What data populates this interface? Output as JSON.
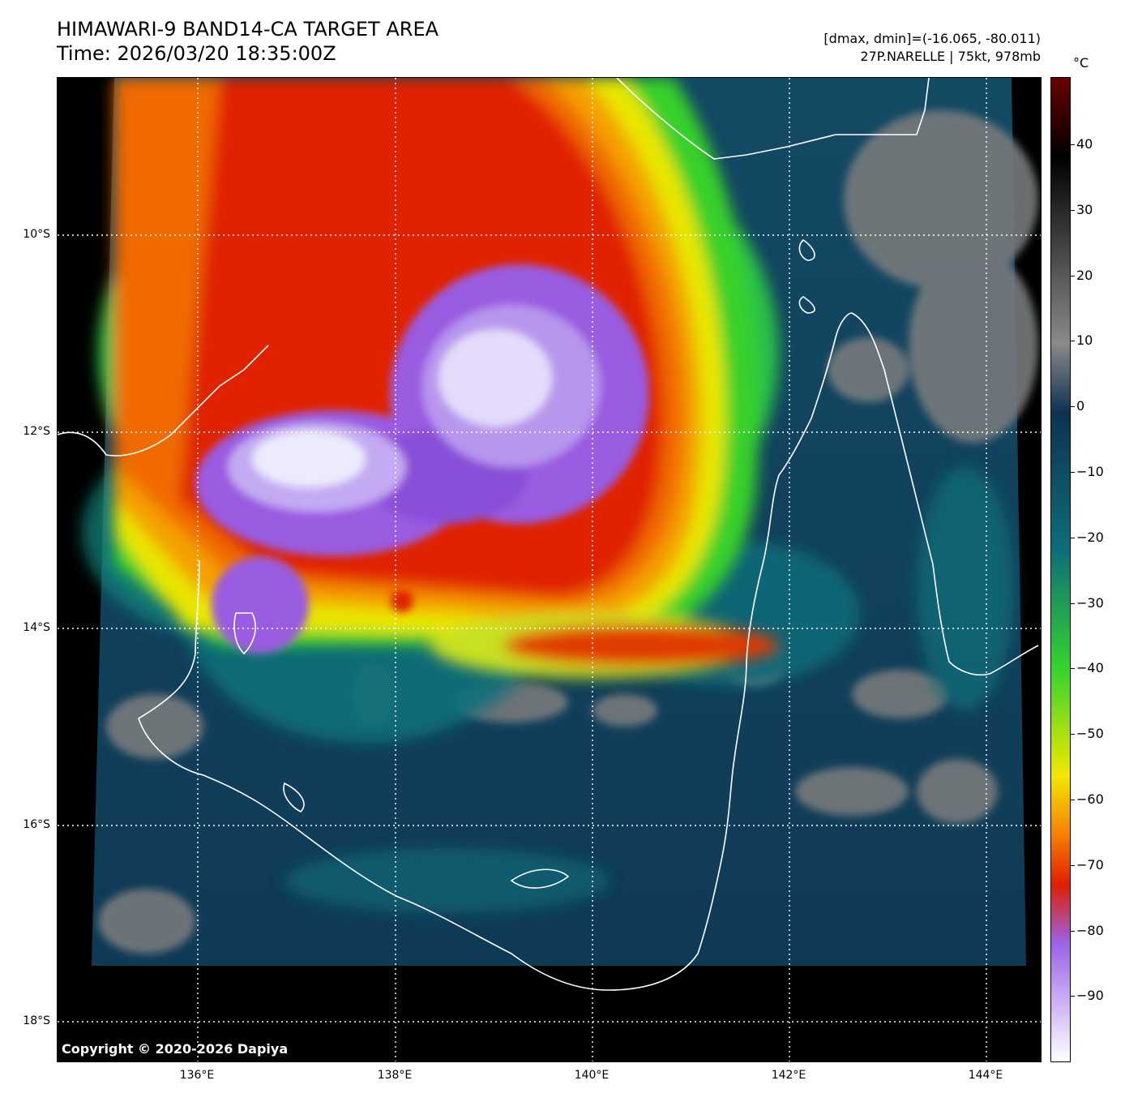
{
  "header": {
    "title_line1": "HIMAWARI-9 BAND14-CA TARGET AREA",
    "title_line2": "Time: 2026/03/20 18:35:00Z",
    "info_line1": "[dmax, dmin]=(-16.065, -80.011)",
    "info_line2": "27P.NARELLE | 75kt, 978mb"
  },
  "map": {
    "lat_labels": [
      "10°S",
      "12°S",
      "14°S",
      "16°S",
      "18°S"
    ],
    "lon_labels": [
      "136°E",
      "138°E",
      "140°E",
      "142°E",
      "144°E"
    ],
    "copyright": "Copyright © 2020-2026 Dapiya"
  },
  "colorbar": {
    "unit": "°C",
    "tick_labels": [
      "40",
      "30",
      "20",
      "10",
      "0",
      "−10",
      "−20",
      "−30",
      "−40",
      "−50",
      "−60",
      "−70",
      "−80",
      "−90"
    ],
    "colors": {
      "hot": "#6a0000",
      "warm_black": "#000000",
      "gray": "#8a8a8a",
      "dark_blue": "#0e3350",
      "teal": "#0e6d78",
      "green": "#33d42e",
      "yellow": "#f2e800",
      "orange": "#f57e00",
      "red": "#e01f00",
      "purple": "#9a63e8",
      "white": "#ffffff"
    }
  }
}
